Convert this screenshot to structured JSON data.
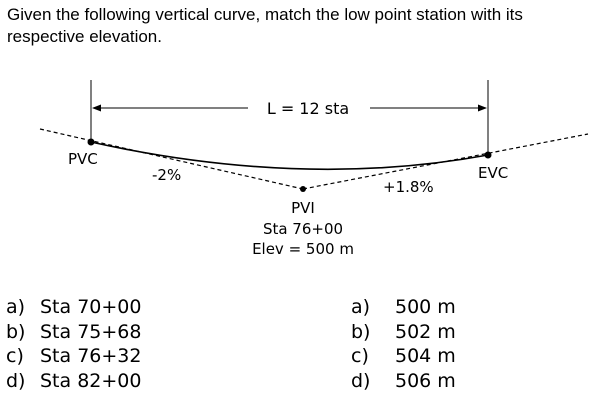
{
  "question": "Given the following vertical curve, match the low point station with its respective elevation.",
  "diagram": {
    "length_label": "L = 12 sta",
    "pvc_label": "PVC",
    "evc_label": "EVC",
    "grade_in": "-2%",
    "grade_out": "+1.8%",
    "pvi_label": "PVI",
    "pvi_station": "Sta 76+00",
    "pvi_elev": "Elev = 500 m"
  },
  "stations": [
    {
      "letter": "a)",
      "text": "Sta 70+00"
    },
    {
      "letter": "b)",
      "text": "Sta 75+68"
    },
    {
      "letter": "c)",
      "text": "Sta 76+32"
    },
    {
      "letter": "d)",
      "text": "Sta 82+00"
    }
  ],
  "elevations": [
    {
      "letter": "a)",
      "text": "500 m"
    },
    {
      "letter": "b)",
      "text": "502 m"
    },
    {
      "letter": "c)",
      "text": "504 m"
    },
    {
      "letter": "d)",
      "text": "506 m"
    }
  ]
}
